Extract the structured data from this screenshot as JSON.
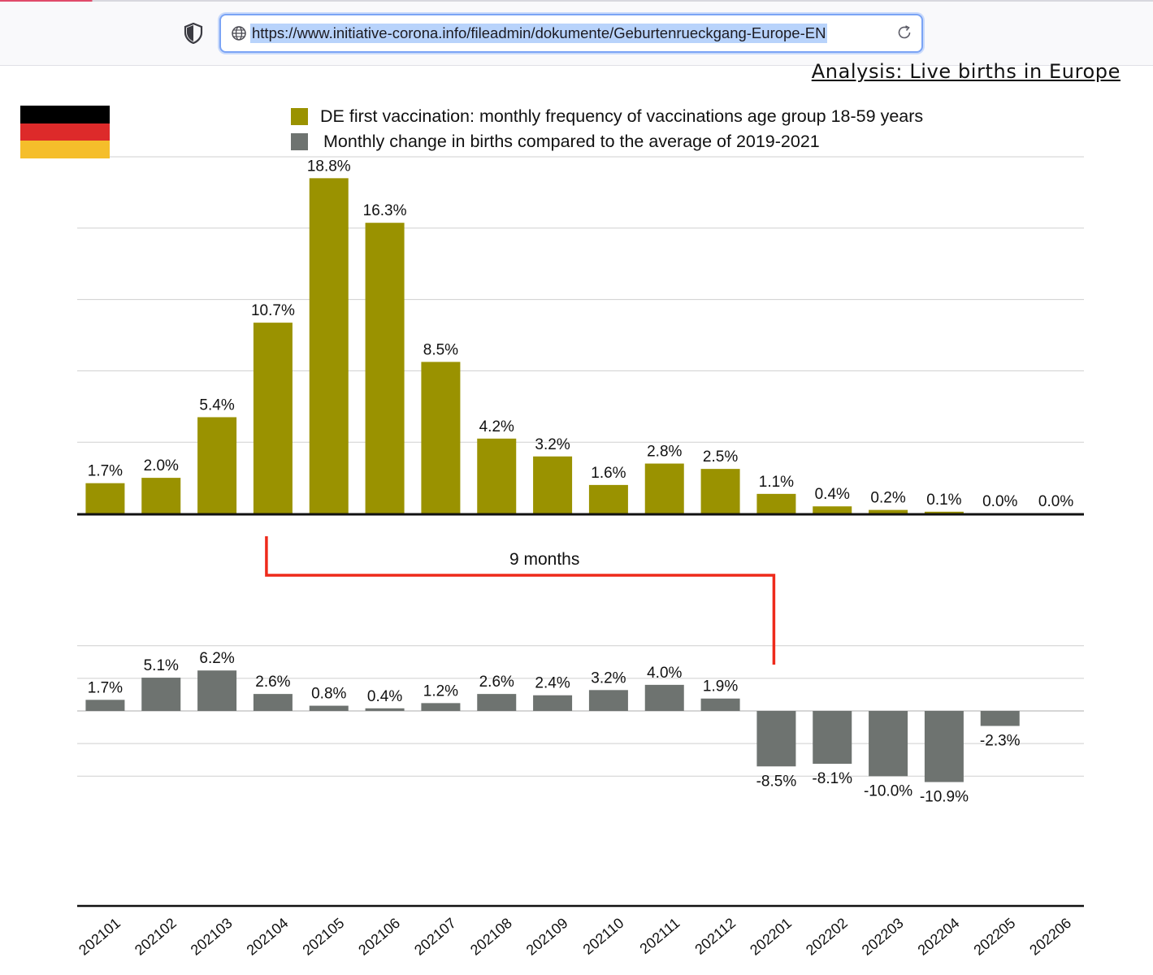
{
  "browser": {
    "url": "https://www.initiative-corona.info/fileadmin/dokumente/Geburtenrueckgang-Europe-EN",
    "icons": [
      "shield-icon",
      "globe-icon",
      "reload-icon"
    ]
  },
  "page": {
    "header": "Analysis: Live births in Europe"
  },
  "flag": {
    "country": "Germany",
    "colors": [
      "#000000",
      "#dd2a2a",
      "#f5be2b"
    ]
  },
  "chart_data": {
    "type": "bar",
    "categories": [
      "202101",
      "202102",
      "202103",
      "202104",
      "202105",
      "202106",
      "202107",
      "202108",
      "202109",
      "202110",
      "202111",
      "202112",
      "202201",
      "202202",
      "202203",
      "202204",
      "202205",
      "202206"
    ],
    "series": [
      {
        "name": "DE first vaccination: monthly frequency of vaccinations age group 18-59 years",
        "color": "#9a9200",
        "values": [
          1.7,
          2.0,
          5.4,
          10.7,
          18.8,
          16.3,
          8.5,
          4.2,
          3.2,
          1.6,
          2.8,
          2.5,
          1.1,
          0.4,
          0.2,
          0.1,
          0.0,
          0.0
        ],
        "labels": [
          "1.7%",
          "2.0%",
          "5.4%",
          "10.7%",
          "18.8%",
          "16.3%",
          "8.5%",
          "4.2%",
          "3.2%",
          "1.6%",
          "2.8%",
          "2.5%",
          "1.1%",
          "0.4%",
          "0.2%",
          "0.1%",
          "0.0%",
          "0.0%"
        ],
        "ylim": [
          0,
          20
        ]
      },
      {
        "name": "Monthly change in births compared to the average of 2019-2021",
        "color": "#6e7370",
        "values": [
          1.7,
          5.1,
          6.2,
          2.6,
          0.8,
          0.4,
          1.2,
          2.6,
          2.4,
          3.2,
          4.0,
          1.9,
          -8.5,
          -8.1,
          -10.0,
          -10.9,
          -2.3,
          null
        ],
        "labels": [
          "1.7%",
          "5.1%",
          "6.2%",
          "2.6%",
          "0.8%",
          "0.4%",
          "1.2%",
          "2.6%",
          "2.4%",
          "3.2%",
          "4.0%",
          "1.9%",
          "-8.5%",
          "-8.1%",
          "-10.0%",
          "-10.9%",
          "-2.3%",
          ""
        ],
        "ylim": [
          -15,
          10
        ]
      }
    ],
    "annotation": {
      "text": "9 months",
      "from_category": "202104",
      "to_category": "202201",
      "color": "#ee2a1b"
    },
    "grid": true,
    "legend_position": "top-center"
  }
}
